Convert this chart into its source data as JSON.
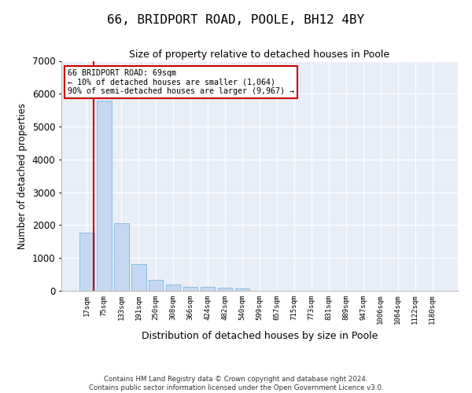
{
  "title": "66, BRIDPORT ROAD, POOLE, BH12 4BY",
  "subtitle": "Size of property relative to detached houses in Poole",
  "xlabel": "Distribution of detached houses by size in Poole",
  "ylabel": "Number of detached properties",
  "bar_color": "#c5d8f0",
  "bar_edge_color": "#6baed6",
  "background_color": "#e8eef8",
  "grid_color": "#ffffff",
  "bin_labels": [
    "17sqm",
    "75sqm",
    "133sqm",
    "191sqm",
    "250sqm",
    "308sqm",
    "366sqm",
    "424sqm",
    "482sqm",
    "540sqm",
    "599sqm",
    "657sqm",
    "715sqm",
    "773sqm",
    "831sqm",
    "889sqm",
    "947sqm",
    "1006sqm",
    "1064sqm",
    "1122sqm",
    "1180sqm"
  ],
  "bar_heights": [
    1780,
    5780,
    2060,
    820,
    340,
    200,
    120,
    110,
    100,
    70,
    0,
    0,
    0,
    0,
    0,
    0,
    0,
    0,
    0,
    0,
    0
  ],
  "ylim": [
    0,
    7000
  ],
  "yticks": [
    0,
    1000,
    2000,
    3000,
    4000,
    5000,
    6000,
    7000
  ],
  "vline_color": "#cc0000",
  "annotation_title": "66 BRIDPORT ROAD: 69sqm",
  "annotation_line1": "← 10% of detached houses are smaller (1,064)",
  "annotation_line2": "90% of semi-detached houses are larger (9,967) →",
  "annotation_box_color": "#cc0000",
  "footer_line1": "Contains HM Land Registry data © Crown copyright and database right 2024.",
  "footer_line2": "Contains public sector information licensed under the Open Government Licence v3.0."
}
